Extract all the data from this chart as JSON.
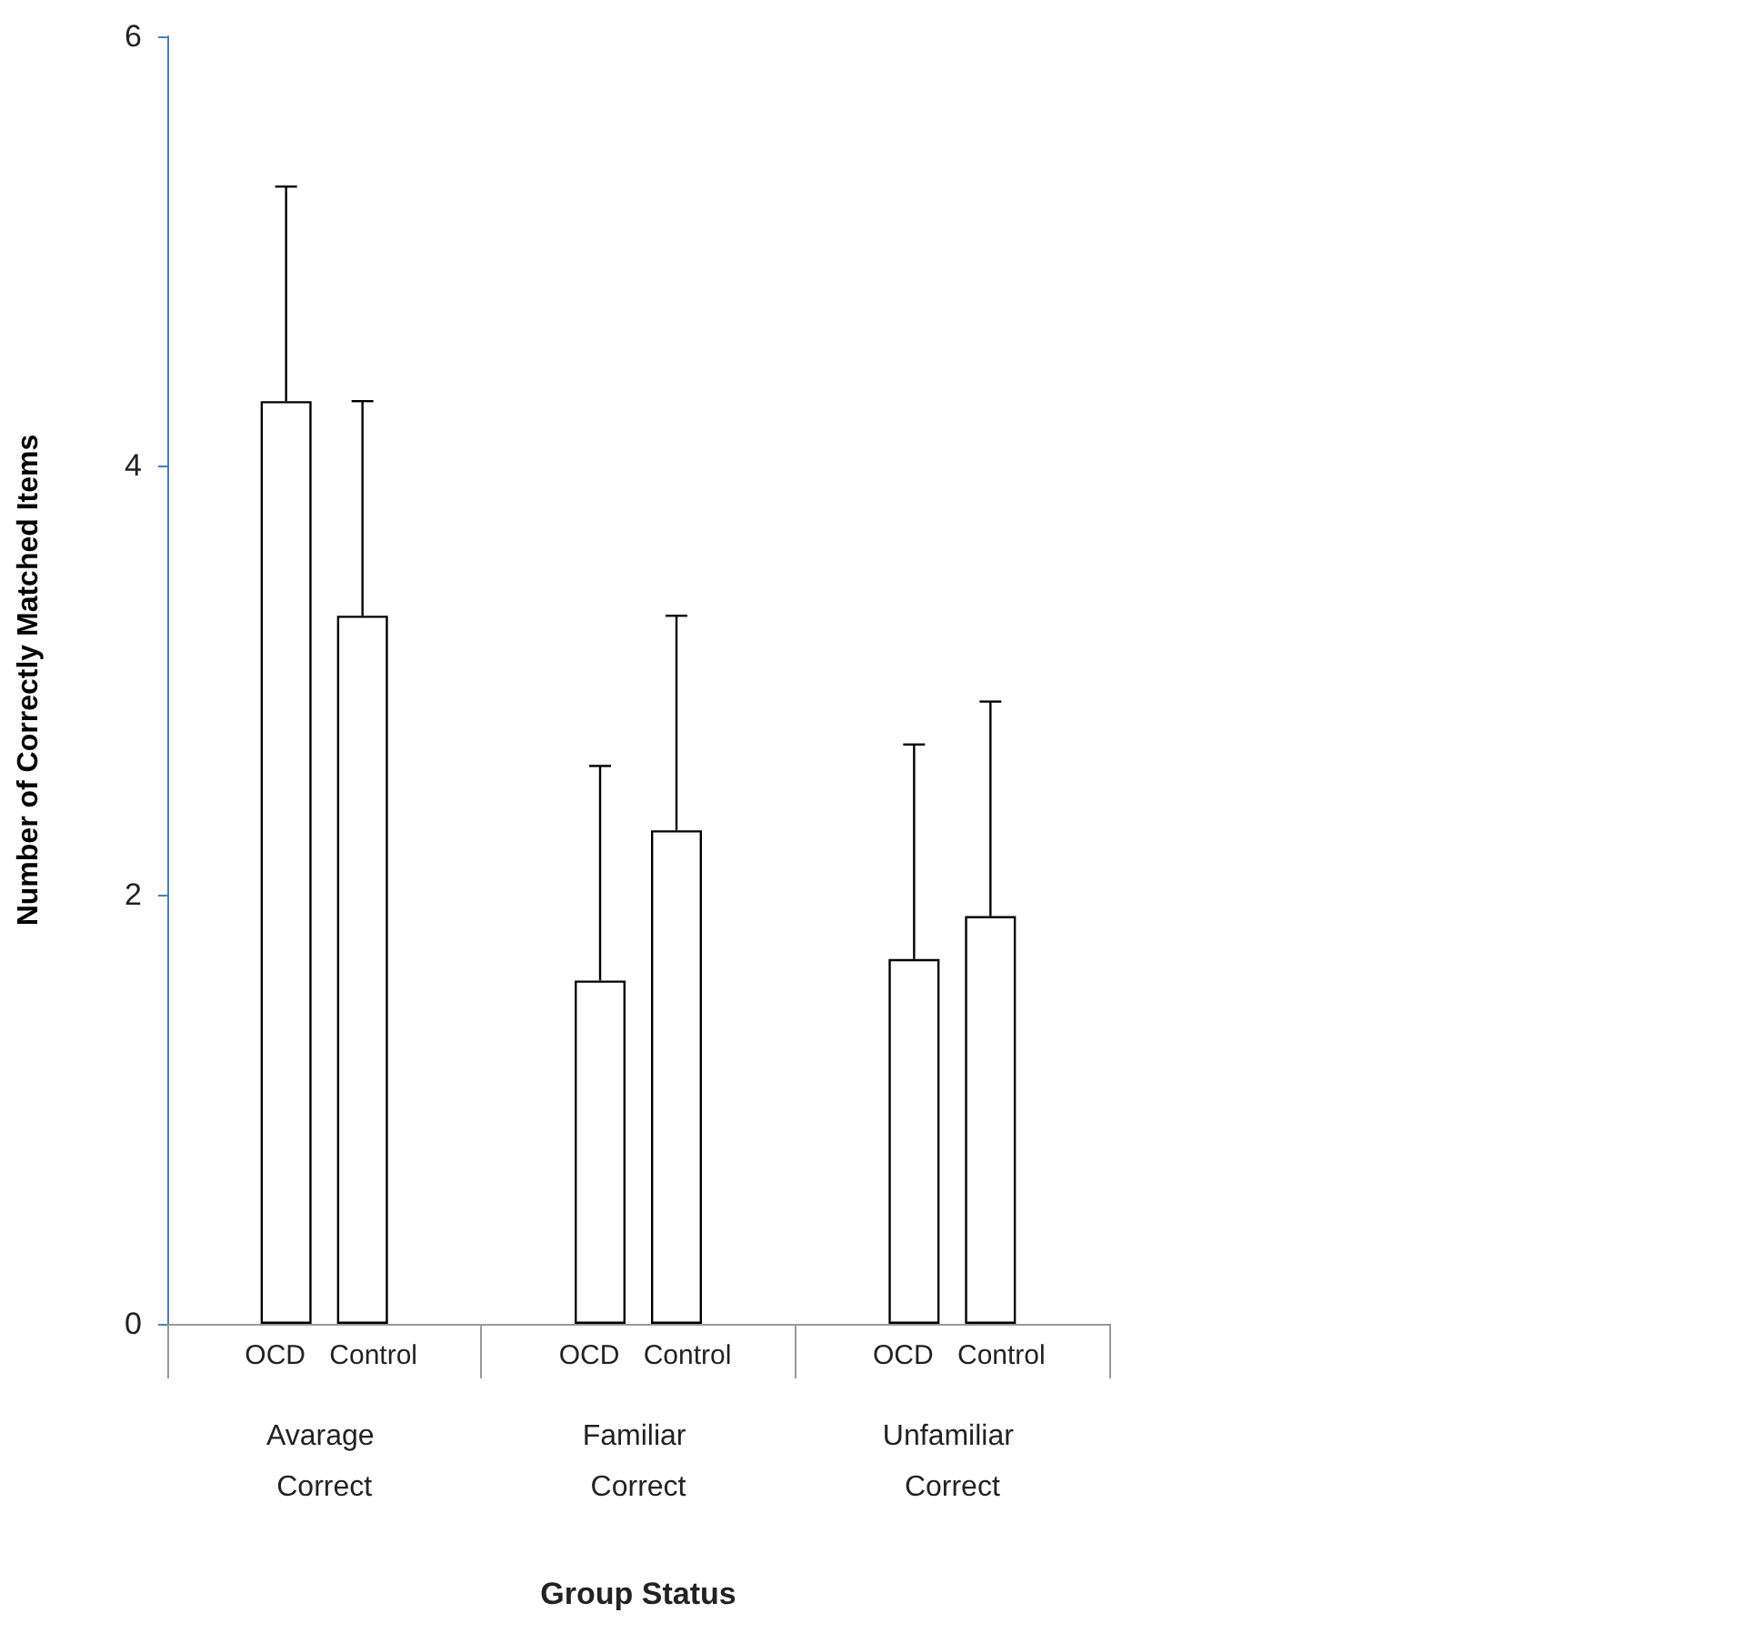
{
  "chart_data": {
    "type": "bar",
    "xlabel": "Group Status",
    "ylabel": "Number of Correctly Matched Items",
    "categories": [
      "Avarage Correct",
      "Familiar Correct",
      "Unfamiliar Correct"
    ],
    "series": [
      {
        "name": "OCD",
        "color": "#ffffff",
        "values": [
          4.3,
          1.6,
          1.7
        ],
        "errors": [
          [
            4.3,
            5.3
          ],
          [
            1.6,
            2.6
          ],
          [
            1.7,
            2.7
          ]
        ]
      },
      {
        "name": "Control",
        "color": "#ffffff",
        "values": [
          3.3,
          2.3,
          1.9
        ],
        "errors": [
          [
            3.3,
            4.3
          ],
          [
            2.3,
            3.3
          ],
          [
            1.9,
            2.9
          ]
        ]
      }
    ],
    "ylim": [
      0,
      6
    ],
    "yticks": [
      0,
      2,
      4,
      6
    ]
  }
}
